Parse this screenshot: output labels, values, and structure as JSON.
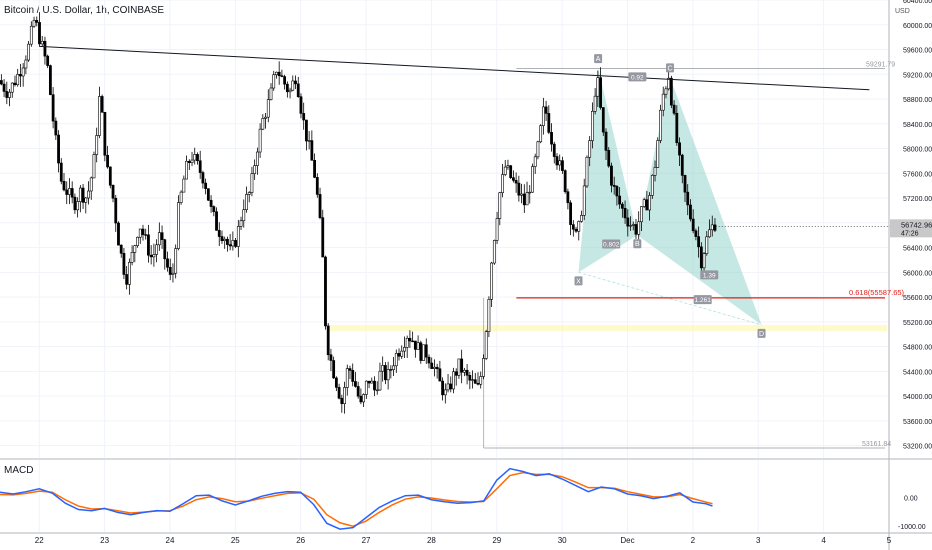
{
  "header": {
    "title": "Bitcoin / U.S. Dollar, 1h, COINBASE"
  },
  "indicator": {
    "label": "MACD"
  },
  "chart_data": {
    "type": "candlestick",
    "symbol": "Bitcoin / U.S. Dollar",
    "interval": "1h",
    "exchange": "COINBASE",
    "currency": "USD",
    "price_ticks": [
      "60400.00",
      "60000.00",
      "59600.00",
      "59200.00",
      "58800.00",
      "58400.00",
      "58000.00",
      "57600.00",
      "57200.00",
      "56800.00",
      "56400.00",
      "56000.00",
      "55600.00",
      "55200.00",
      "54800.00",
      "54400.00",
      "54000.00",
      "53600.00",
      "53200.00"
    ],
    "price_values": [
      60400,
      60000,
      59600,
      59200,
      58800,
      58400,
      58000,
      57600,
      57200,
      56800,
      56400,
      56000,
      55600,
      55200,
      54800,
      54400,
      54000,
      53600,
      53200
    ],
    "price_range": [
      53000,
      60400
    ],
    "macd_ticks": [
      "0.00",
      "-1000.00"
    ],
    "x_ticks": [
      {
        "label": "22",
        "day": 22
      },
      {
        "label": "23",
        "day": 23
      },
      {
        "label": "24",
        "day": 24
      },
      {
        "label": "25",
        "day": 25
      },
      {
        "label": "26",
        "day": 26
      },
      {
        "label": "27",
        "day": 27
      },
      {
        "label": "28",
        "day": 28
      },
      {
        "label": "29",
        "day": 29
      },
      {
        "label": "30",
        "day": 30
      },
      {
        "label": "Dec",
        "day": 31
      },
      {
        "label": "2",
        "day": 32
      },
      {
        "label": "3",
        "day": 33
      },
      {
        "label": "4",
        "day": 34
      },
      {
        "label": "5",
        "day": 35
      }
    ],
    "x_range": [
      21.4,
      35.0
    ],
    "price_path": [
      [
        21.4,
        59100
      ],
      [
        21.55,
        58900
      ],
      [
        21.7,
        59200
      ],
      [
        21.85,
        59600
      ],
      [
        21.95,
        60100
      ],
      [
        22.05,
        59700
      ],
      [
        22.15,
        59300
      ],
      [
        22.25,
        58300
      ],
      [
        22.35,
        57500
      ],
      [
        22.45,
        57300
      ],
      [
        22.55,
        57100
      ],
      [
        22.65,
        57300
      ],
      [
        22.75,
        57200
      ],
      [
        22.85,
        57700
      ],
      [
        22.95,
        58900
      ],
      [
        23.05,
        57700
      ],
      [
        23.15,
        57200
      ],
      [
        23.25,
        56400
      ],
      [
        23.35,
        55900
      ],
      [
        23.45,
        56300
      ],
      [
        23.55,
        56800
      ],
      [
        23.65,
        56500
      ],
      [
        23.75,
        56200
      ],
      [
        23.85,
        56600
      ],
      [
        23.95,
        56200
      ],
      [
        24.05,
        55800
      ],
      [
        24.15,
        57000
      ],
      [
        24.25,
        57600
      ],
      [
        24.35,
        57900
      ],
      [
        24.45,
        57700
      ],
      [
        24.55,
        57500
      ],
      [
        24.65,
        57000
      ],
      [
        24.75,
        56700
      ],
      [
        24.85,
        56600
      ],
      [
        24.95,
        56300
      ],
      [
        25.05,
        56600
      ],
      [
        25.15,
        57100
      ],
      [
        25.25,
        57300
      ],
      [
        25.35,
        58000
      ],
      [
        25.45,
        58500
      ],
      [
        25.55,
        58800
      ],
      [
        25.65,
        59300
      ],
      [
        25.75,
        59100
      ],
      [
        25.85,
        58900
      ],
      [
        25.95,
        59200
      ],
      [
        26.05,
        58500
      ],
      [
        26.15,
        58000
      ],
      [
        26.25,
        57500
      ],
      [
        26.35,
        56400
      ],
      [
        26.4,
        55200
      ],
      [
        26.45,
        54700
      ],
      [
        26.55,
        54300
      ],
      [
        26.65,
        53900
      ],
      [
        26.75,
        54500
      ],
      [
        26.85,
        54200
      ],
      [
        26.95,
        53800
      ],
      [
        27.05,
        54300
      ],
      [
        27.15,
        54100
      ],
      [
        27.25,
        54400
      ],
      [
        27.35,
        54300
      ],
      [
        27.45,
        54600
      ],
      [
        27.55,
        54800
      ],
      [
        27.65,
        55000
      ],
      [
        27.75,
        54900
      ],
      [
        27.85,
        54700
      ],
      [
        27.95,
        54700
      ],
      [
        28.05,
        54500
      ],
      [
        28.15,
        54200
      ],
      [
        28.25,
        54000
      ],
      [
        28.35,
        54300
      ],
      [
        28.45,
        54500
      ],
      [
        28.55,
        54300
      ],
      [
        28.65,
        54200
      ],
      [
        28.75,
        54100
      ],
      [
        28.85,
        55000
      ],
      [
        28.95,
        56300
      ],
      [
        29.05,
        57200
      ],
      [
        29.15,
        57700
      ],
      [
        29.25,
        57500
      ],
      [
        29.35,
        57300
      ],
      [
        29.45,
        57100
      ],
      [
        29.55,
        57500
      ],
      [
        29.65,
        58000
      ],
      [
        29.75,
        58700
      ],
      [
        29.85,
        58200
      ],
      [
        29.95,
        57800
      ],
      [
        30.05,
        57500
      ],
      [
        30.15,
        56900
      ],
      [
        30.25,
        56500
      ],
      [
        30.35,
        57300
      ],
      [
        30.45,
        58200
      ],
      [
        30.55,
        59200
      ],
      [
        30.65,
        58200
      ],
      [
        30.75,
        57600
      ],
      [
        30.85,
        57200
      ],
      [
        30.95,
        57000
      ],
      [
        31.05,
        56800
      ],
      [
        31.15,
        56700
      ],
      [
        31.25,
        57000
      ],
      [
        31.35,
        57200
      ],
      [
        31.45,
        57800
      ],
      [
        31.55,
        58800
      ],
      [
        31.65,
        59200
      ],
      [
        31.75,
        58300
      ],
      [
        31.85,
        57500
      ],
      [
        31.95,
        57000
      ],
      [
        32.05,
        56700
      ],
      [
        32.15,
        56200
      ],
      [
        32.25,
        56600
      ],
      [
        32.35,
        56800
      ]
    ],
    "trendline": {
      "from": [
        22.0,
        59650
      ],
      "to": [
        34.7,
        58950
      ]
    },
    "fib_level": {
      "label": "0.618(55587.65)",
      "value": 55587.65,
      "from_day": 29.3
    },
    "pattern_points": [
      {
        "label": "X",
        "day": 30.25,
        "price": 56000
      },
      {
        "label": "A",
        "day": 30.55,
        "price": 59300
      },
      {
        "label": "B",
        "day": 31.15,
        "price": 56600
      },
      {
        "label": "C",
        "day": 31.65,
        "price": 59150
      },
      {
        "label": "D",
        "day": 33.05,
        "price": 55150
      }
    ],
    "pattern_ratios": [
      {
        "label": "0.802",
        "day": 30.75,
        "price": 56450
      },
      {
        "label": "0.92",
        "day": 31.15,
        "price": 59150
      },
      {
        "label": "1.39",
        "day": 32.25,
        "price": 55950
      },
      {
        "label": "1.261",
        "day": 32.15,
        "price": 55550
      }
    ],
    "current_price": {
      "label": "56742.96",
      "countdown": "47:26",
      "value": 56742.96
    },
    "zone": {
      "from": 55050,
      "to": 55150,
      "from_day": 26.45
    },
    "hi_box": {
      "label": "59291.79",
      "value": 59291.79,
      "from_day": 29.3
    },
    "lo_box": {
      "label": "53161.84",
      "value": 53161.84,
      "from_day": 28.8
    },
    "macd_series": {
      "macd_color": "#2962ff",
      "signal_color": "#ff6d00",
      "range": [
        -1200,
        1300
      ],
      "macd": [
        [
          21.4,
          180
        ],
        [
          21.6,
          120
        ],
        [
          21.8,
          200
        ],
        [
          22.0,
          300
        ],
        [
          22.2,
          150
        ],
        [
          22.4,
          -200
        ],
        [
          22.6,
          -420
        ],
        [
          22.8,
          -460
        ],
        [
          23.0,
          -380
        ],
        [
          23.2,
          -520
        ],
        [
          23.4,
          -600
        ],
        [
          23.6,
          -520
        ],
        [
          23.8,
          -460
        ],
        [
          24.0,
          -480
        ],
        [
          24.2,
          -220
        ],
        [
          24.4,
          60
        ],
        [
          24.6,
          80
        ],
        [
          24.8,
          -120
        ],
        [
          25.0,
          -260
        ],
        [
          25.2,
          -120
        ],
        [
          25.4,
          40
        ],
        [
          25.6,
          140
        ],
        [
          25.8,
          200
        ],
        [
          26.0,
          180
        ],
        [
          26.2,
          -250
        ],
        [
          26.4,
          -900
        ],
        [
          26.6,
          -1100
        ],
        [
          26.8,
          -1050
        ],
        [
          27.0,
          -700
        ],
        [
          27.2,
          -350
        ],
        [
          27.4,
          -120
        ],
        [
          27.6,
          60
        ],
        [
          27.8,
          80
        ],
        [
          28.0,
          -80
        ],
        [
          28.2,
          -150
        ],
        [
          28.4,
          -200
        ],
        [
          28.6,
          -180
        ],
        [
          28.8,
          -120
        ],
        [
          29.0,
          600
        ],
        [
          29.2,
          1000
        ],
        [
          29.4,
          900
        ],
        [
          29.6,
          760
        ],
        [
          29.8,
          820
        ],
        [
          30.0,
          640
        ],
        [
          30.2,
          420
        ],
        [
          30.4,
          200
        ],
        [
          30.6,
          360
        ],
        [
          30.8,
          300
        ],
        [
          31.0,
          120
        ],
        [
          31.2,
          60
        ],
        [
          31.4,
          -40
        ],
        [
          31.6,
          40
        ],
        [
          31.8,
          160
        ],
        [
          32.0,
          -160
        ],
        [
          32.2,
          -220
        ],
        [
          32.3,
          -300
        ]
      ],
      "signal": [
        [
          21.4,
          100
        ],
        [
          21.6,
          90
        ],
        [
          21.8,
          140
        ],
        [
          22.0,
          220
        ],
        [
          22.2,
          180
        ],
        [
          22.4,
          -80
        ],
        [
          22.6,
          -300
        ],
        [
          22.8,
          -400
        ],
        [
          23.0,
          -390
        ],
        [
          23.2,
          -460
        ],
        [
          23.4,
          -540
        ],
        [
          23.6,
          -510
        ],
        [
          23.8,
          -470
        ],
        [
          24.0,
          -460
        ],
        [
          24.2,
          -300
        ],
        [
          24.4,
          -80
        ],
        [
          24.6,
          20
        ],
        [
          24.8,
          -40
        ],
        [
          25.0,
          -150
        ],
        [
          25.2,
          -130
        ],
        [
          25.4,
          -30
        ],
        [
          25.6,
          60
        ],
        [
          25.8,
          140
        ],
        [
          26.0,
          160
        ],
        [
          26.2,
          -60
        ],
        [
          26.4,
          -600
        ],
        [
          26.6,
          -880
        ],
        [
          26.8,
          -1000
        ],
        [
          27.0,
          -820
        ],
        [
          27.2,
          -520
        ],
        [
          27.4,
          -260
        ],
        [
          27.6,
          -60
        ],
        [
          27.8,
          20
        ],
        [
          28.0,
          -20
        ],
        [
          28.2,
          -90
        ],
        [
          28.4,
          -140
        ],
        [
          28.6,
          -160
        ],
        [
          28.8,
          -140
        ],
        [
          29.0,
          300
        ],
        [
          29.2,
          760
        ],
        [
          29.4,
          860
        ],
        [
          29.6,
          800
        ],
        [
          29.8,
          800
        ],
        [
          30.0,
          720
        ],
        [
          30.2,
          540
        ],
        [
          30.4,
          340
        ],
        [
          30.6,
          340
        ],
        [
          30.8,
          320
        ],
        [
          31.0,
          200
        ],
        [
          31.2,
          110
        ],
        [
          31.4,
          20
        ],
        [
          31.6,
          20
        ],
        [
          31.8,
          100
        ],
        [
          32.0,
          -40
        ],
        [
          32.2,
          -160
        ],
        [
          32.3,
          -220
        ]
      ]
    }
  }
}
